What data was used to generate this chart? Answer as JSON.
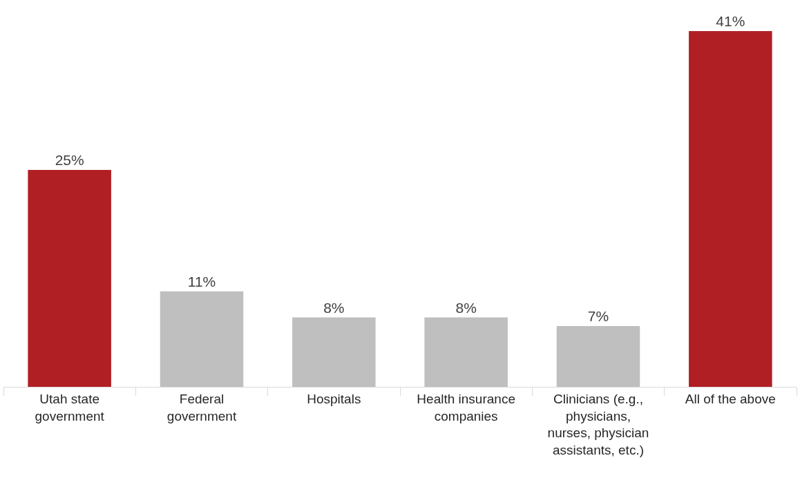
{
  "chart_data": {
    "type": "bar",
    "categories": [
      "Utah state government",
      "Federal government",
      "Hospitals",
      "Health insurance companies",
      "Clinicians (e.g., physicians, nurses, physician assistants, etc.)",
      "All of the above"
    ],
    "values": [
      25,
      11,
      8,
      8,
      7,
      41
    ],
    "colors": [
      "#b01f24",
      "#bfbfbf",
      "#bfbfbf",
      "#bfbfbf",
      "#bfbfbf",
      "#b01f24"
    ],
    "value_labels": [
      "25%",
      "11%",
      "8%",
      "8%",
      "7%",
      "41%"
    ],
    "ylim": [
      0,
      41
    ],
    "tick_labels": "x",
    "legend": false
  }
}
